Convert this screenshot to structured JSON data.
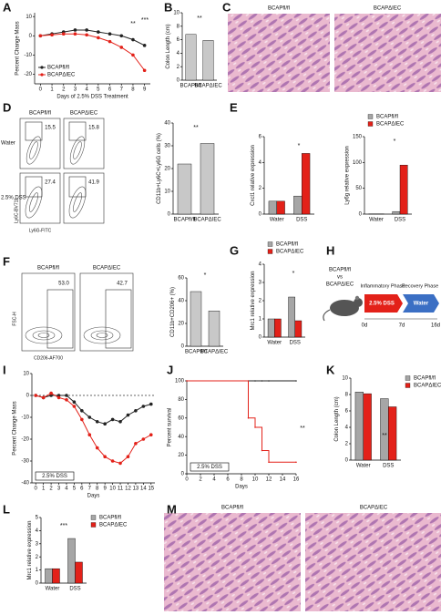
{
  "panel_labels": [
    "A",
    "B",
    "C",
    "D",
    "E",
    "F",
    "G",
    "H",
    "I",
    "J",
    "K",
    "L",
    "M"
  ],
  "chart_data": [
    {
      "type": "line",
      "ylabel": "Percent Change Mass",
      "xlabel": "Days of 2.5% DSS Treatment",
      "x": [
        0,
        1,
        2,
        3,
        4,
        5,
        6,
        7,
        8,
        9
      ],
      "xlim": [
        -0.5,
        9.5
      ],
      "xticks": [
        0,
        1,
        2,
        3,
        4,
        5,
        6,
        7,
        8,
        9
      ],
      "ylim": [
        -25,
        12
      ],
      "yticks": [
        -20,
        -10,
        0,
        10
      ],
      "legend": "lower-left",
      "series": [
        {
          "name": "BCAPfl/fl",
          "color": "#222222",
          "values": [
            0,
            1,
            2,
            3,
            3,
            2,
            1,
            0,
            -2,
            -5
          ]
        },
        {
          "name": "BCAPΔIEC",
          "color": "#e32119",
          "values": [
            0,
            0.5,
            1,
            1,
            0.5,
            -1,
            -3,
            -6,
            -10,
            -18
          ]
        }
      ],
      "annotations": [
        "**",
        "***"
      ]
    },
    {
      "type": "bar",
      "ylabel": "Colon Length (cm)",
      "categories": [
        "BCAPfl/fl",
        "BCAPΔIEC"
      ],
      "values": [
        6.8,
        5.9
      ],
      "color": "#c8c8c8",
      "ylim": [
        0,
        10
      ],
      "yticks": [
        0,
        2,
        4,
        6,
        8,
        10
      ],
      "annotations": [
        "**"
      ]
    },
    {
      "type": "bar",
      "ylabel": "CD11b+Ly6C+Ly6G cells (%)",
      "categories": [
        "BCAPfl/fl",
        "BCAPΔIEC"
      ],
      "values": [
        22,
        31
      ],
      "color": "#c8c8c8",
      "ylim": [
        0,
        40
      ],
      "yticks": [
        0,
        10,
        20,
        30,
        40
      ],
      "annotations": [
        "**"
      ]
    },
    {
      "type": "bar",
      "ylabel": "Cxcl1 relative expression",
      "categories": [
        "Water",
        "DSS"
      ],
      "series": [
        {
          "name": "BCAPfl/fl",
          "color": "#a6a6a6",
          "values": [
            1.0,
            1.4
          ]
        },
        {
          "name": "BCAPΔIEC",
          "color": "#e32119",
          "values": [
            1.0,
            4.7
          ]
        }
      ],
      "ylim": [
        0,
        6
      ],
      "yticks": [
        0,
        2,
        4,
        6
      ],
      "annotations": [
        "*"
      ]
    },
    {
      "type": "bar",
      "ylabel": "Ly6g relative expression",
      "categories": [
        "Water",
        "DSS"
      ],
      "series": [
        {
          "name": "BCAPfl/fl",
          "color": "#a6a6a6",
          "values": [
            0.5,
            5
          ]
        },
        {
          "name": "BCAPΔIEC",
          "color": "#e32119",
          "values": [
            0.5,
            95
          ]
        }
      ],
      "ylim": [
        0,
        150
      ],
      "yticks": [
        0,
        50,
        100,
        150
      ],
      "legend": "top",
      "annotations": [
        "*"
      ]
    },
    {
      "type": "bar",
      "ylabel": "CD11b+CD206+ (%)",
      "categories": [
        "BCAPfl/fl",
        "BCAPΔIEC"
      ],
      "values": [
        48,
        31
      ],
      "color": "#c8c8c8",
      "ylim": [
        0,
        60
      ],
      "yticks": [
        0,
        20,
        40,
        60
      ],
      "annotations": [
        "*"
      ]
    },
    {
      "type": "bar",
      "ylabel": "Mrc1 relative expression",
      "categories": [
        "Water",
        "DSS"
      ],
      "series": [
        {
          "name": "BCAPfl/fl",
          "color": "#a6a6a6",
          "values": [
            1.0,
            2.2
          ]
        },
        {
          "name": "BCAPΔIEC",
          "color": "#e32119",
          "values": [
            1.0,
            0.9
          ]
        }
      ],
      "ylim": [
        0,
        4
      ],
      "yticks": [
        0,
        1,
        2,
        3,
        4
      ],
      "legend": "top",
      "annotations": [
        "*"
      ]
    },
    {
      "type": "line",
      "ylabel": "Percent Change Mass",
      "xlabel": "Days",
      "box_label": "2.5% DSS",
      "refline": 0,
      "x": [
        0,
        1,
        2,
        3,
        4,
        5,
        6,
        7,
        8,
        9,
        10,
        11,
        12,
        13,
        14,
        15
      ],
      "xlim": [
        -0.5,
        15.5
      ],
      "xticks": [
        0,
        1,
        2,
        3,
        4,
        5,
        6,
        7,
        8,
        9,
        10,
        11,
        12,
        13,
        14,
        15
      ],
      "ylim": [
        -40,
        10
      ],
      "yticks": [
        -40,
        -30,
        -20,
        -10,
        0,
        10
      ],
      "series": [
        {
          "name": "BCAPfl/fl",
          "color": "#222222",
          "values": [
            0,
            -1,
            0,
            0,
            0,
            -3,
            -7,
            -10,
            -12,
            -13,
            -11,
            -12,
            -9,
            -7,
            -5,
            -4
          ]
        },
        {
          "name": "BCAPΔIEC",
          "color": "#e32119",
          "values": [
            0,
            -1,
            1,
            -1,
            -2,
            -5,
            -11,
            -18,
            -24,
            -28,
            -30,
            -31,
            -28,
            -22,
            -20,
            -18
          ]
        }
      ]
    },
    {
      "type": "step",
      "ylabel": "Percent survival",
      "xlabel": "Days",
      "box_label": "2.5% DSS",
      "x": [
        0,
        9,
        10,
        11,
        12,
        16
      ],
      "xlim": [
        0,
        16
      ],
      "xticks": [
        0,
        2,
        4,
        6,
        8,
        10,
        12,
        14,
        16
      ],
      "ylim": [
        0,
        100
      ],
      "yticks": [
        0,
        20,
        40,
        60,
        80,
        100
      ],
      "series": [
        {
          "name": "BCAPfl/fl",
          "color": "#222222",
          "values": [
            100,
            100,
            100,
            100,
            100,
            100
          ]
        },
        {
          "name": "BCAPΔIEC",
          "color": "#e32119",
          "values": [
            100,
            60,
            50,
            25,
            12.5,
            12.5
          ]
        }
      ],
      "annotations": [
        "**"
      ]
    },
    {
      "type": "bar",
      "ylabel": "Colon Length (cm)",
      "categories": [
        "Water",
        "DSS"
      ],
      "series": [
        {
          "name": "BCAPfl/fl",
          "color": "#a6a6a6",
          "values": [
            8.3,
            7.5
          ]
        },
        {
          "name": "BCAPΔIEC",
          "color": "#e32119",
          "values": [
            8.1,
            6.5
          ]
        }
      ],
      "ylim": [
        0,
        10
      ],
      "yticks": [
        0,
        2,
        4,
        6,
        8,
        10
      ],
      "legend": "right",
      "annotations": [
        "**"
      ]
    },
    {
      "type": "bar",
      "ylabel": "Mrc1 relative expression",
      "categories": [
        "Water",
        "DSS"
      ],
      "series": [
        {
          "name": "BCAPfl/fl",
          "color": "#a6a6a6",
          "values": [
            1.1,
            3.4
          ]
        },
        {
          "name": "BCAPΔIEC",
          "color": "#e32119",
          "values": [
            1.1,
            1.6
          ]
        }
      ],
      "ylim": [
        0,
        5
      ],
      "yticks": [
        0,
        1,
        2,
        3,
        4,
        5
      ],
      "legend": "right",
      "annotations": [
        "***"
      ]
    }
  ],
  "histology_C": {
    "labels": [
      "BCAPfl/fl",
      "BCAPΔIEC"
    ]
  },
  "flow_D": {
    "columns": [
      "BCAPfl/fl",
      "BCAPΔIEC"
    ],
    "rows": [
      "Water",
      "2.5% DSS"
    ],
    "gates": [
      "15.5",
      "15.8",
      "27.4",
      "41.9"
    ],
    "x_axis": "Ly6G-FITC",
    "y_axis": "Ly6C-BV711"
  },
  "flow_F": {
    "columns": [
      "BCAPfl/fl",
      "BCAPΔIEC"
    ],
    "gates": [
      "53.0",
      "42.7"
    ],
    "x_axis": "CD206-AF700",
    "y_axis": "FSC-H"
  },
  "scheme_H": {
    "groups": [
      "BCAPfl/fl",
      "vs",
      "BCAPΔIEC"
    ],
    "phases": [
      "Inflammatory Phase",
      "Recovery Phase"
    ],
    "treatments": [
      "2.5% DSS",
      "Water"
    ],
    "timepoints": [
      "0d",
      "7d",
      "16d"
    ]
  },
  "histology_M": {
    "labels": [
      "BCAPfl/fl",
      "BCAPΔIEC"
    ]
  }
}
